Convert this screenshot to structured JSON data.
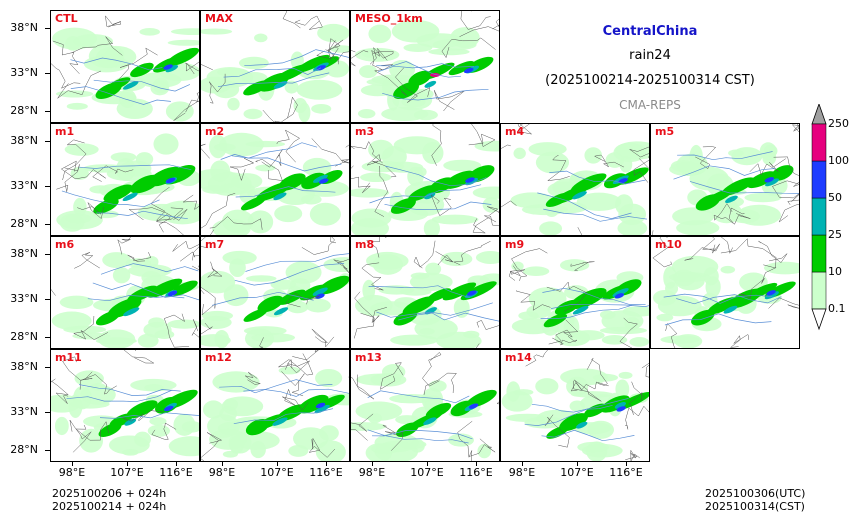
{
  "title": {
    "region": "CentralChina",
    "variable": "rain24",
    "period": "(2025100214-2025100314 CST)",
    "model": "CMA-REPS"
  },
  "panels": [
    {
      "label": "CTL",
      "row": 0,
      "col": 0
    },
    {
      "label": "MAX",
      "row": 0,
      "col": 1
    },
    {
      "label": "MESO_1km",
      "row": 0,
      "col": 2
    },
    {
      "label": "m1",
      "row": 1,
      "col": 0
    },
    {
      "label": "m2",
      "row": 1,
      "col": 1
    },
    {
      "label": "m3",
      "row": 1,
      "col": 2
    },
    {
      "label": "m4",
      "row": 1,
      "col": 3
    },
    {
      "label": "m5",
      "row": 1,
      "col": 4
    },
    {
      "label": "m6",
      "row": 2,
      "col": 0
    },
    {
      "label": "m7",
      "row": 2,
      "col": 1
    },
    {
      "label": "m8",
      "row": 2,
      "col": 2
    },
    {
      "label": "m9",
      "row": 2,
      "col": 3
    },
    {
      "label": "m10",
      "row": 2,
      "col": 4
    },
    {
      "label": "m11",
      "row": 3,
      "col": 0
    },
    {
      "label": "m12",
      "row": 3,
      "col": 1
    },
    {
      "label": "m13",
      "row": 3,
      "col": 2
    },
    {
      "label": "m14",
      "row": 3,
      "col": 3
    }
  ],
  "axes": {
    "lat_ticks": [
      "38°N",
      "33°N",
      "28°N"
    ],
    "lon_ticks": [
      "98°E",
      "107°E",
      "116°E"
    ]
  },
  "colorbar": {
    "levels": [
      "0.1",
      "10",
      "25",
      "50",
      "100",
      "250"
    ],
    "colors": [
      "#ccffcc",
      "#00cc00",
      "#00b3b3",
      "#1e3cff",
      "#e6007e",
      "#a0a0a0"
    ]
  },
  "footer": {
    "init_line1": "2025100206  +  024h",
    "init_line2": "2025100214  +  024h",
    "valid_utc": "2025100306(UTC)",
    "valid_cst": "2025100314(CST)"
  }
}
